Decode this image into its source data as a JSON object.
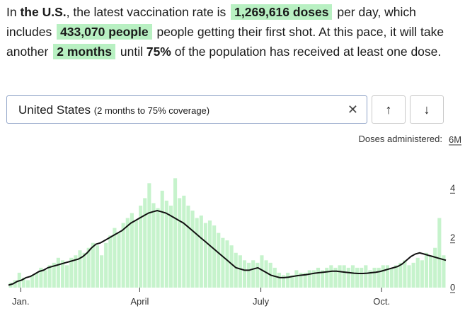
{
  "summary": {
    "t1": "In ",
    "region": "the U.S.",
    "t2": ", the latest vaccination rate is ",
    "doses": "1,269,616 doses",
    "t3": " per day, which includes ",
    "people": "433,070 people",
    "t4": " people getting their first shot. At this pace, it will take another ",
    "time": "2 months",
    "t5": " until ",
    "pct": "75%",
    "t6": " of the population has received at least one dose."
  },
  "search": {
    "country": "United States",
    "note": "(2 months to 75% coverage)",
    "clear": "✕"
  },
  "nav": {
    "up": "↑",
    "down": "↓"
  },
  "colors": {
    "bar": "#c6f3cc",
    "line": "#111111",
    "highlight": "#b8f0c2"
  },
  "chart_data": {
    "type": "bar",
    "ylabel": "Doses administered:",
    "y_unit_label": "6M",
    "yticks": [
      "0",
      "2",
      "4"
    ],
    "xticks": [
      "Jan.",
      "April",
      "July",
      "Oct."
    ],
    "ylim": [
      0,
      6
    ],
    "series": [
      {
        "type": "bar",
        "values": [
          0.2,
          0.3,
          0.6,
          0.4,
          0.3,
          0.5,
          0.6,
          0.8,
          0.7,
          0.9,
          1.0,
          1.2,
          1.1,
          0.9,
          1.2,
          1.3,
          1.5,
          1.4,
          1.6,
          1.8,
          1.7,
          1.3,
          1.8,
          2.1,
          2.4,
          2.2,
          2.6,
          2.8,
          3.0,
          2.7,
          3.3,
          3.6,
          4.2,
          3.4,
          3.2,
          3.9,
          3.5,
          3.3,
          4.4,
          3.6,
          3.7,
          3.3,
          3.1,
          2.8,
          2.9,
          2.6,
          2.7,
          2.5,
          2.2,
          2.0,
          1.9,
          1.7,
          1.4,
          1.3,
          1.1,
          1.0,
          1.1,
          1.0,
          1.3,
          1.1,
          1.0,
          0.8,
          0.6,
          0.5,
          0.6,
          0.5,
          0.7,
          0.6,
          0.6,
          0.7,
          0.7,
          0.8,
          0.7,
          0.8,
          0.9,
          0.8,
          0.9,
          0.9,
          0.8,
          0.9,
          0.8,
          0.8,
          0.9,
          0.7,
          0.8,
          0.8,
          0.9,
          0.9,
          0.8,
          0.9,
          1.0,
          1.1,
          0.9,
          1.0,
          1.2,
          1.1,
          1.4,
          1.3,
          1.6,
          2.8,
          1.3
        ]
      },
      {
        "type": "line",
        "values": [
          0.1,
          0.15,
          0.25,
          0.3,
          0.4,
          0.45,
          0.55,
          0.65,
          0.7,
          0.8,
          0.85,
          0.9,
          0.95,
          1.0,
          1.05,
          1.1,
          1.15,
          1.25,
          1.4,
          1.6,
          1.75,
          1.8,
          1.9,
          2.0,
          2.1,
          2.2,
          2.3,
          2.45,
          2.6,
          2.7,
          2.8,
          2.9,
          3.0,
          3.05,
          3.1,
          3.05,
          3.0,
          2.9,
          2.8,
          2.7,
          2.6,
          2.45,
          2.3,
          2.15,
          2.0,
          1.85,
          1.7,
          1.55,
          1.4,
          1.25,
          1.1,
          0.95,
          0.8,
          0.75,
          0.7,
          0.7,
          0.75,
          0.8,
          0.7,
          0.6,
          0.5,
          0.45,
          0.4,
          0.4,
          0.42,
          0.45,
          0.48,
          0.5,
          0.52,
          0.55,
          0.58,
          0.6,
          0.62,
          0.64,
          0.66,
          0.66,
          0.64,
          0.62,
          0.6,
          0.58,
          0.57,
          0.57,
          0.58,
          0.6,
          0.62,
          0.65,
          0.7,
          0.75,
          0.8,
          0.85,
          0.95,
          1.1,
          1.25,
          1.35,
          1.4,
          1.35,
          1.3,
          1.25,
          1.2,
          1.15,
          1.1
        ]
      }
    ]
  }
}
